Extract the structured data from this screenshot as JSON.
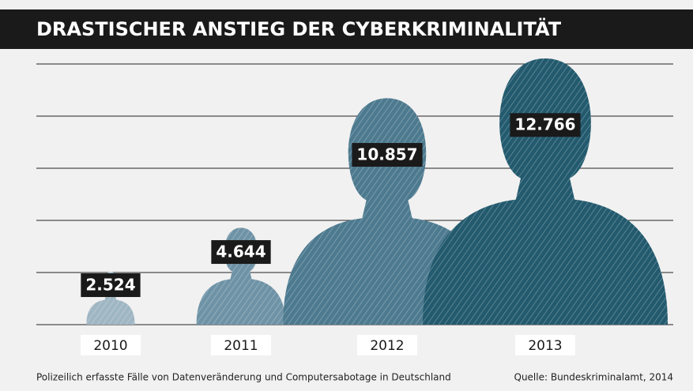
{
  "chart_data": {
    "type": "pictogram",
    "title": "DRASTISCHER ANSTIEG DER CYBERKRIMINALITÄT",
    "categories": [
      "2010",
      "2011",
      "2012",
      "2013"
    ],
    "values": [
      2524,
      4644,
      10857,
      12766
    ],
    "value_labels": [
      "2.524",
      "4.644",
      "10.857",
      "12.766"
    ],
    "colors": [
      "#9fb6c3",
      "#6f93a6",
      "#4d7a8f",
      "#235a6e"
    ],
    "ylim": [
      0,
      12500
    ],
    "yticks": [
      0,
      2500,
      5000,
      7500,
      10000,
      12500
    ],
    "grid": true,
    "subtitle": "Polizeilich erfasste Fälle von Datenveränderung und Computersabotage in Deutschland",
    "source": "Quelle: Bundeskriminalamt, 2014"
  }
}
